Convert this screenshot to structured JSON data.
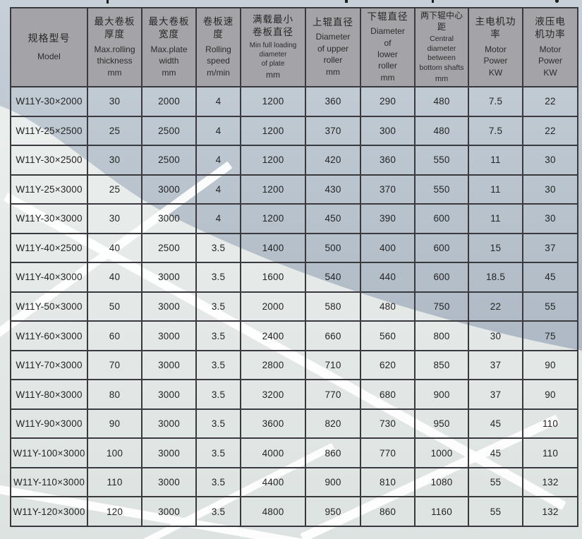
{
  "colors": {
    "header_bg": "#a4a4a8",
    "border": "#3a3a3e",
    "text": "#242424",
    "body_dark_top": "#c7d0d8",
    "body_dark_bottom": "#aeb9c5",
    "body_light_top": "#eef1ef",
    "body_light_bottom": "#dde3e1",
    "streak": "#ffffff"
  },
  "table": {
    "columns": [
      {
        "zh": [
          "规格型号"
        ],
        "en": [
          "Model"
        ],
        "unit": ""
      },
      {
        "zh": [
          "最大卷板",
          "厚度"
        ],
        "en": [
          "Max.rolling",
          "thickness"
        ],
        "unit": "mm"
      },
      {
        "zh": [
          "最大卷板",
          "宽度"
        ],
        "en": [
          "Max.plate",
          "width"
        ],
        "unit": "mm"
      },
      {
        "zh": [
          "卷板速度"
        ],
        "en": [
          "Rolling",
          "speed"
        ],
        "unit": "m/min"
      },
      {
        "zh": [
          "满载最小",
          "卷板直径"
        ],
        "en": [
          "Min full loading",
          "diameter",
          "of plate"
        ],
        "unit": "mm"
      },
      {
        "zh": [
          "上辊直径"
        ],
        "en": [
          "Diameter",
          "of upper",
          "roller"
        ],
        "unit": "mm"
      },
      {
        "zh": [
          "下辊直径"
        ],
        "en": [
          "Diameter",
          "of",
          "lower",
          "roller"
        ],
        "unit": "mm"
      },
      {
        "zh": [
          "两下辊中心距"
        ],
        "en": [
          "Central",
          "diameter",
          "between",
          "bottom shafts"
        ],
        "unit": "mm"
      },
      {
        "zh": [
          "主电机功率"
        ],
        "en": [
          "Motor",
          "Power"
        ],
        "unit": "KW"
      },
      {
        "zh": [
          "液压电",
          "机功率"
        ],
        "en": [
          "Motor",
          "Power"
        ],
        "unit": "KW"
      }
    ],
    "rows": [
      [
        "W11Y-30×2000",
        "30",
        "2000",
        "4",
        "1200",
        "360",
        "290",
        "480",
        "7.5",
        "22"
      ],
      [
        "W11Y-25×2500",
        "25",
        "2500",
        "4",
        "1200",
        "370",
        "300",
        "480",
        "7.5",
        "22"
      ],
      [
        "W11Y-30×2500",
        "30",
        "2500",
        "4",
        "1200",
        "420",
        "360",
        "550",
        "11",
        "30"
      ],
      [
        "W11Y-25×3000",
        "25",
        "3000",
        "4",
        "1200",
        "430",
        "370",
        "550",
        "11",
        "30"
      ],
      [
        "W11Y-30×3000",
        "30",
        "3000",
        "4",
        "1200",
        "450",
        "390",
        "600",
        "11",
        "30"
      ],
      [
        "W11Y-40×2500",
        "40",
        "2500",
        "3.5",
        "1400",
        "500",
        "400",
        "600",
        "15",
        "37"
      ],
      [
        "W11Y-40×3000",
        "40",
        "3000",
        "3.5",
        "1600",
        "540",
        "440",
        "600",
        "18.5",
        "45"
      ],
      [
        "W11Y-50×3000",
        "50",
        "3000",
        "3.5",
        "2000",
        "580",
        "480",
        "750",
        "22",
        "55"
      ],
      [
        "W11Y-60×3000",
        "60",
        "3000",
        "3.5",
        "2400",
        "660",
        "560",
        "800",
        "30",
        "75"
      ],
      [
        "W11Y-70×3000",
        "70",
        "3000",
        "3.5",
        "2800",
        "710",
        "620",
        "850",
        "37",
        "90"
      ],
      [
        "W11Y-80×3000",
        "80",
        "3000",
        "3.5",
        "3200",
        "770",
        "680",
        "900",
        "37",
        "90"
      ],
      [
        "W11Y-90×3000",
        "90",
        "3000",
        "3.5",
        "3600",
        "820",
        "730",
        "950",
        "45",
        "110"
      ],
      [
        "W11Y-100×3000",
        "100",
        "3000",
        "3.5",
        "4000",
        "860",
        "770",
        "1000",
        "45",
        "110"
      ],
      [
        "W11Y-110×3000",
        "110",
        "3000",
        "3.5",
        "4400",
        "900",
        "810",
        "1080",
        "55",
        "132"
      ],
      [
        "W11Y-120×3000",
        "120",
        "3000",
        "3.5",
        "4800",
        "950",
        "860",
        "1160",
        "55",
        "132"
      ]
    ]
  }
}
